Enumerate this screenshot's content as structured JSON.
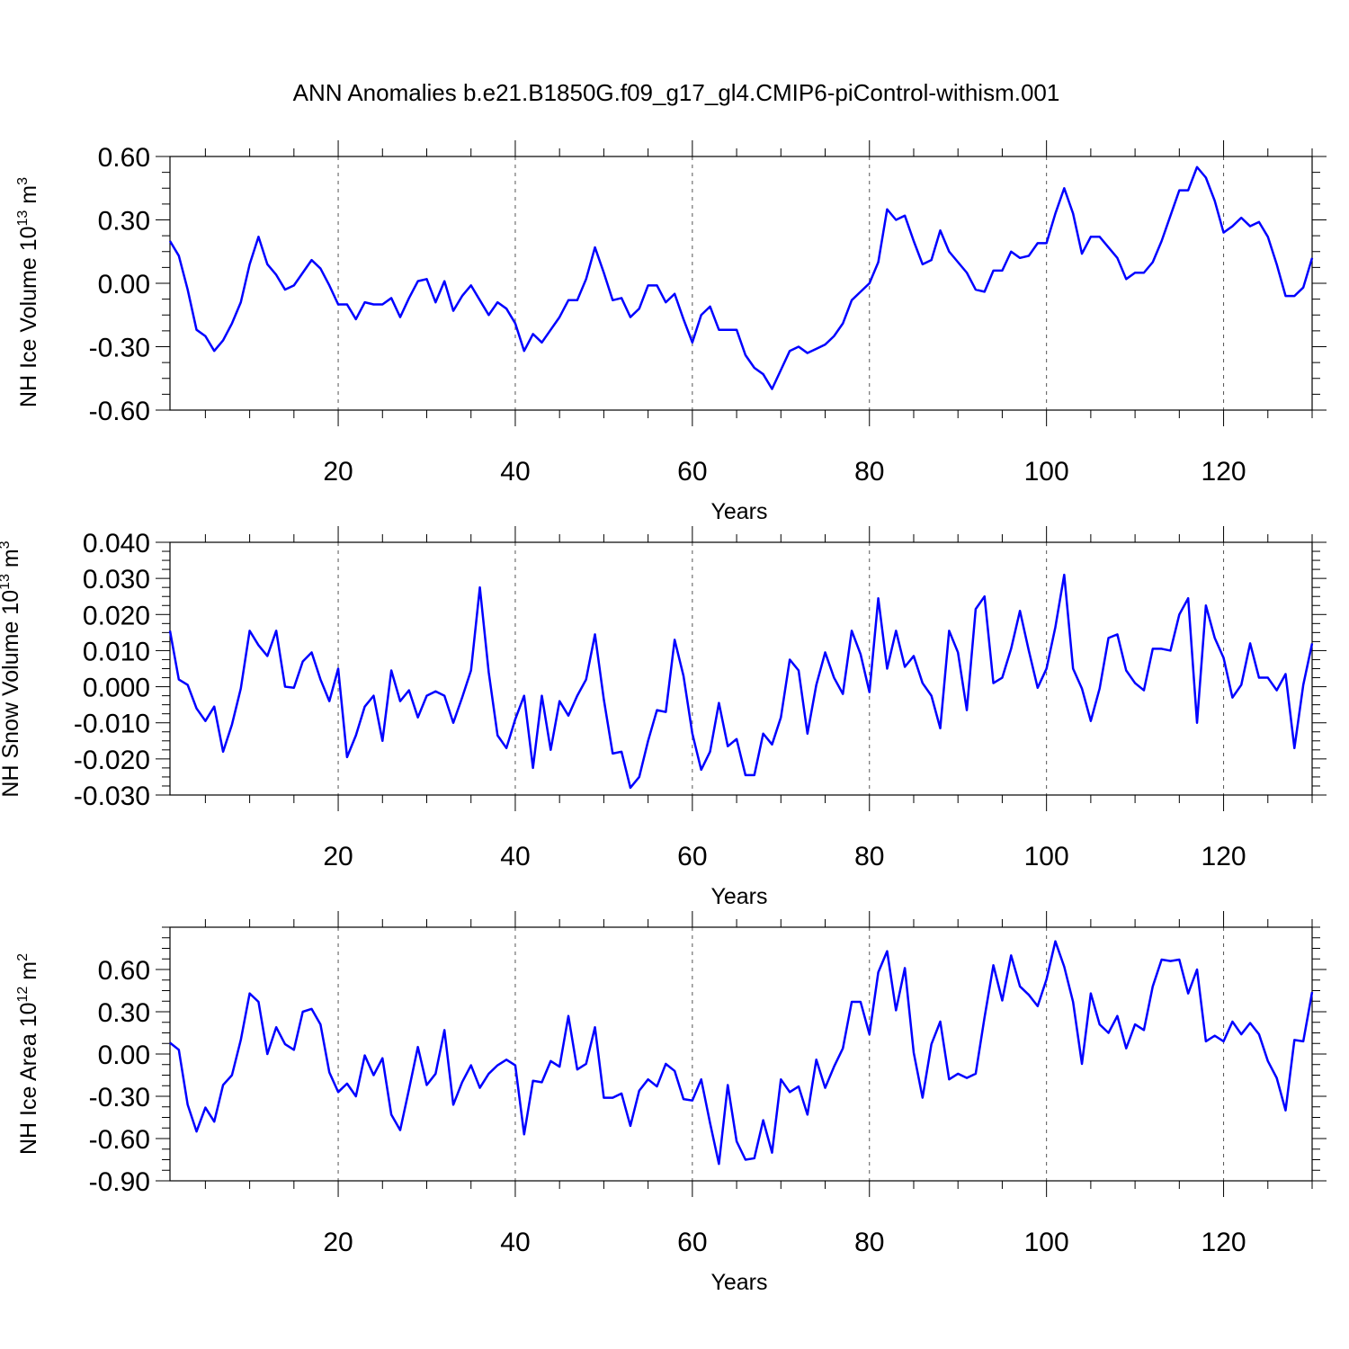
{
  "figure": {
    "title": "ANN Anomalies b.e21.B1850G.f09_g17_gl4.CMIP6-piControl-withism.001"
  },
  "colors": {
    "line": "#0000ff",
    "frame": "#000000",
    "grid": "#555555"
  },
  "chart_data": [
    {
      "type": "line",
      "ylabel": "NH Ice Volume 10",
      "ylabel_exp": "13",
      "ylabel_unit": "m",
      "ylabel_unit_exp": "3",
      "xlabel": "Years",
      "xlim": [
        1,
        130
      ],
      "ylim": [
        -0.6,
        0.6
      ],
      "xticks": [
        20,
        40,
        60,
        80,
        100,
        120
      ],
      "xtick_labels": [
        "20",
        "40",
        "60",
        "80",
        "100",
        "120"
      ],
      "yticks": [
        -0.6,
        -0.3,
        0.0,
        0.3,
        0.6
      ],
      "ytick_labels": [
        "-0.60",
        "-0.30",
        "0.00",
        "0.30",
        "0.60"
      ],
      "y_minor_step": 0.075,
      "grid": "vertical dashed at major x ticks",
      "series": [
        {
          "values": [
            0.2,
            0.13,
            -0.03,
            -0.22,
            -0.25,
            -0.32,
            -0.27,
            -0.19,
            -0.09,
            0.09,
            0.22,
            0.09,
            0.04,
            -0.03,
            -0.01,
            0.05,
            0.11,
            0.07,
            -0.01,
            -0.1,
            -0.1,
            -0.17,
            -0.09,
            -0.1,
            -0.1,
            -0.07,
            -0.16,
            -0.07,
            0.01,
            0.02,
            -0.09,
            0.01,
            -0.13,
            -0.06,
            -0.01,
            -0.08,
            -0.15,
            -0.09,
            -0.12,
            -0.19,
            -0.32,
            -0.24,
            -0.28,
            -0.22,
            -0.16,
            -0.08,
            -0.08,
            0.02,
            0.17,
            0.05,
            -0.08,
            -0.07,
            -0.16,
            -0.12,
            -0.01,
            -0.01,
            -0.09,
            -0.05,
            -0.17,
            -0.28,
            -0.15,
            -0.11,
            -0.22,
            -0.22,
            -0.22,
            -0.34,
            -0.4,
            -0.43,
            -0.5,
            -0.41,
            -0.32,
            -0.3,
            -0.33,
            -0.31,
            -0.29,
            -0.25,
            -0.19,
            -0.08,
            -0.04,
            0.0,
            0.1,
            0.35,
            0.3,
            0.32,
            0.2,
            0.09,
            0.11,
            0.25,
            0.15,
            0.1,
            0.05,
            -0.03,
            -0.04,
            0.06,
            0.06,
            0.15,
            0.12,
            0.13,
            0.19,
            0.19,
            0.33,
            0.45,
            0.33,
            0.14,
            0.22,
            0.22,
            0.17,
            0.12,
            0.02,
            0.05,
            0.05,
            0.1,
            0.2,
            0.32,
            0.44,
            0.44,
            0.55,
            0.5,
            0.39,
            0.24,
            0.27,
            0.31,
            0.27,
            0.29,
            0.22,
            0.09,
            -0.06,
            -0.06,
            -0.02,
            0.12
          ]
        }
      ]
    },
    {
      "type": "line",
      "ylabel": "NH Snow Volume 10",
      "ylabel_exp": "13",
      "ylabel_unit": "m",
      "ylabel_unit_exp": "3",
      "xlabel": "Years",
      "xlim": [
        1,
        130
      ],
      "ylim": [
        -0.03,
        0.04
      ],
      "xticks": [
        20,
        40,
        60,
        80,
        100,
        120
      ],
      "xtick_labels": [
        "20",
        "40",
        "60",
        "80",
        "100",
        "120"
      ],
      "yticks": [
        -0.03,
        -0.02,
        -0.01,
        0.0,
        0.01,
        0.02,
        0.03,
        0.04
      ],
      "ytick_labels": [
        "-0.030",
        "-0.020",
        "-0.010",
        "0.000",
        "0.010",
        "0.020",
        "0.030",
        "0.040"
      ],
      "y_minor_step": 0.0025,
      "grid": "vertical dashed at major x ticks",
      "series": [
        {
          "values": [
            0.0155,
            0.002,
            0.0005,
            -0.006,
            -0.0095,
            -0.0055,
            -0.018,
            -0.0105,
            -0.0005,
            0.0155,
            0.0115,
            0.0085,
            0.0155,
            0.0,
            -0.0003,
            0.007,
            0.0095,
            0.002,
            -0.004,
            0.005,
            -0.0195,
            -0.0135,
            -0.0055,
            -0.0025,
            -0.015,
            0.0045,
            -0.004,
            -0.001,
            -0.0085,
            -0.0025,
            -0.0013,
            -0.0025,
            -0.01,
            -0.003,
            0.0045,
            0.0275,
            0.004,
            -0.0135,
            -0.017,
            -0.009,
            -0.0025,
            -0.0225,
            -0.0025,
            -0.0175,
            -0.004,
            -0.008,
            -0.0025,
            0.002,
            0.0145,
            -0.0035,
            -0.0185,
            -0.018,
            -0.028,
            -0.025,
            -0.015,
            -0.0065,
            -0.007,
            0.013,
            0.003,
            -0.013,
            -0.023,
            -0.018,
            -0.0045,
            -0.0165,
            -0.0145,
            -0.0245,
            -0.0245,
            -0.013,
            -0.016,
            -0.0085,
            0.0075,
            0.0045,
            -0.013,
            0.0005,
            0.0095,
            0.0025,
            -0.002,
            0.0155,
            0.009,
            -0.0015,
            0.0245,
            0.005,
            0.0155,
            0.0055,
            0.0085,
            0.001,
            -0.0025,
            -0.0115,
            0.0155,
            0.0095,
            -0.0065,
            0.0215,
            0.025,
            0.001,
            0.0025,
            0.0105,
            0.021,
            0.01,
            -0.0003,
            0.005,
            0.0165,
            0.031,
            0.005,
            -0.0005,
            -0.0095,
            -0.0005,
            0.0135,
            0.0145,
            0.0045,
            0.001,
            -0.001,
            0.0105,
            0.0105,
            0.01,
            0.02,
            0.0245,
            -0.01,
            0.0225,
            0.0135,
            0.008,
            -0.003,
            0.0005,
            0.012,
            0.0025,
            0.0025,
            -0.001,
            0.0035,
            -0.017,
            0.0005,
            0.012
          ]
        }
      ]
    },
    {
      "type": "line",
      "ylabel": "NH Ice Area 10",
      "ylabel_exp": "12",
      "ylabel_unit": "m",
      "ylabel_unit_exp": "2",
      "xlabel": "Years",
      "xlim": [
        1,
        130
      ],
      "ylim": [
        -0.9,
        0.9
      ],
      "xticks": [
        20,
        40,
        60,
        80,
        100,
        120
      ],
      "xtick_labels": [
        "20",
        "40",
        "60",
        "80",
        "100",
        "120"
      ],
      "yticks": [
        -0.9,
        -0.6,
        -0.3,
        0.0,
        0.3,
        0.6
      ],
      "ytick_labels": [
        "-0.90",
        "-0.60",
        "-0.30",
        "0.00",
        "0.30",
        "0.60"
      ],
      "y_minor_step": 0.075,
      "grid": "vertical dashed at major x ticks",
      "series": [
        {
          "values": [
            0.08,
            0.03,
            -0.36,
            -0.55,
            -0.38,
            -0.48,
            -0.22,
            -0.15,
            0.1,
            0.43,
            0.37,
            0.0,
            0.19,
            0.07,
            0.03,
            0.3,
            0.32,
            0.21,
            -0.13,
            -0.27,
            -0.21,
            -0.3,
            -0.01,
            -0.15,
            -0.03,
            -0.43,
            -0.54,
            -0.25,
            0.05,
            -0.22,
            -0.14,
            0.17,
            -0.36,
            -0.2,
            -0.08,
            -0.24,
            -0.14,
            -0.08,
            -0.04,
            -0.08,
            -0.57,
            -0.19,
            -0.2,
            -0.05,
            -0.09,
            0.27,
            -0.11,
            -0.07,
            0.19,
            -0.31,
            -0.31,
            -0.28,
            -0.51,
            -0.26,
            -0.18,
            -0.23,
            -0.07,
            -0.12,
            -0.32,
            -0.33,
            -0.18,
            -0.49,
            -0.78,
            -0.22,
            -0.62,
            -0.75,
            -0.74,
            -0.47,
            -0.7,
            -0.18,
            -0.27,
            -0.23,
            -0.43,
            -0.04,
            -0.24,
            -0.09,
            0.04,
            0.37,
            0.37,
            0.14,
            0.58,
            0.73,
            0.31,
            0.61,
            0.01,
            -0.31,
            0.07,
            0.23,
            -0.18,
            -0.14,
            -0.17,
            -0.14,
            0.26,
            0.63,
            0.38,
            0.7,
            0.48,
            0.42,
            0.34,
            0.53,
            0.8,
            0.62,
            0.37,
            -0.07,
            0.43,
            0.21,
            0.15,
            0.27,
            0.04,
            0.21,
            0.17,
            0.48,
            0.67,
            0.66,
            0.67,
            0.43,
            0.6,
            0.09,
            0.13,
            0.09,
            0.23,
            0.14,
            0.22,
            0.14,
            -0.05,
            -0.17,
            -0.4,
            0.1,
            0.09,
            0.44
          ]
        }
      ]
    }
  ]
}
